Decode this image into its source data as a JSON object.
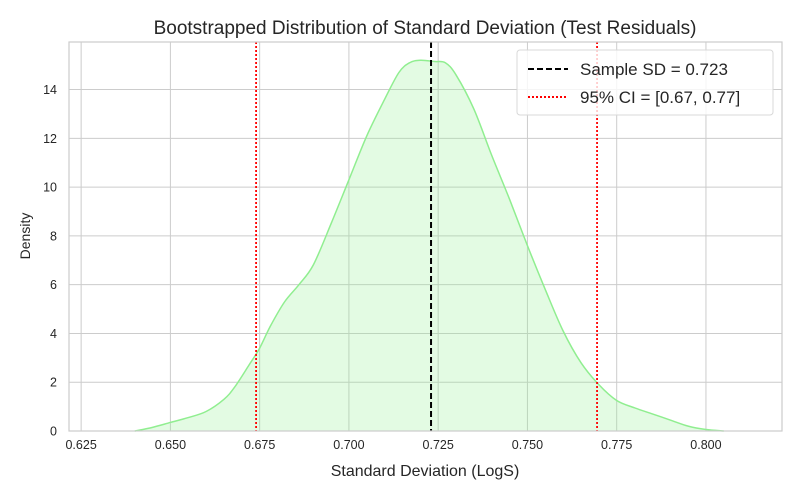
{
  "chart_data": {
    "type": "area",
    "title": "Bootstrapped Distribution of Standard Deviation (Test Residuals)",
    "xlabel": "Standard Deviation (LogS)",
    "ylabel": "Density",
    "xlim": [
      0.6216,
      0.8213
    ],
    "ylim": [
      0,
      15.95
    ],
    "xticks": [
      0.625,
      0.65,
      0.675,
      0.7,
      0.725,
      0.75,
      0.775,
      0.8
    ],
    "xtick_labels": [
      "0.625",
      "0.650",
      "0.675",
      "0.700",
      "0.725",
      "0.750",
      "0.775",
      "0.800"
    ],
    "yticks": [
      0,
      2,
      4,
      6,
      8,
      10,
      12,
      14
    ],
    "ytick_labels": [
      "0",
      "2",
      "4",
      "6",
      "8",
      "10",
      "12",
      "14"
    ],
    "grid": true,
    "legend_position": "top-right",
    "kde": {
      "color": "#90ee90",
      "x": [
        0.64,
        0.645,
        0.65,
        0.655,
        0.66,
        0.665,
        0.668,
        0.672,
        0.675,
        0.678,
        0.682,
        0.686,
        0.69,
        0.695,
        0.7,
        0.705,
        0.71,
        0.714,
        0.717,
        0.72,
        0.724,
        0.727,
        0.73,
        0.735,
        0.74,
        0.745,
        0.75,
        0.755,
        0.76,
        0.765,
        0.77,
        0.775,
        0.78,
        0.785,
        0.79,
        0.795,
        0.8,
        0.805
      ],
      "y": [
        0,
        0.15,
        0.35,
        0.55,
        0.8,
        1.3,
        1.8,
        2.7,
        3.4,
        4.3,
        5.3,
        6.0,
        6.8,
        8.5,
        10.3,
        12.1,
        13.6,
        14.7,
        15.1,
        15.2,
        15.15,
        15.1,
        14.6,
        13.2,
        11.3,
        9.5,
        7.6,
        5.8,
        4.1,
        2.8,
        1.9,
        1.25,
        0.95,
        0.7,
        0.45,
        0.2,
        0.06,
        0
      ]
    },
    "lines": [
      {
        "label": "Sample SD = 0.723",
        "x": 0.723,
        "color": "#000000",
        "style": "dashed"
      },
      {
        "label": "95% CI = [0.67, 0.77]",
        "x": 0.674,
        "color": "#ff0000",
        "style": "dotted"
      },
      {
        "x": 0.7695,
        "color": "#ff0000",
        "style": "dotted"
      }
    ]
  }
}
